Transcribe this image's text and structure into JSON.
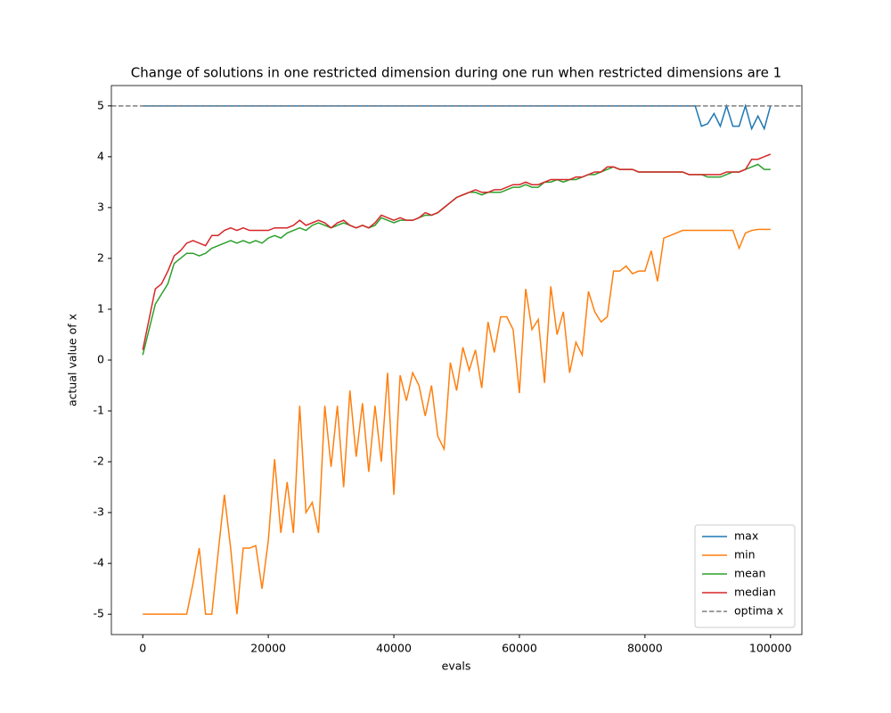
{
  "chart_data": {
    "type": "line",
    "title": "Change of solutions in one restricted dimension during one run when restricted dimensions are 1",
    "x_label": "evals",
    "y_label": "actual value of x",
    "x": [
      0,
      1000,
      2000,
      3000,
      4000,
      5000,
      6000,
      7000,
      8000,
      9000,
      10000,
      11000,
      12000,
      13000,
      14000,
      15000,
      16000,
      17000,
      18000,
      19000,
      20000,
      21000,
      22000,
      23000,
      24000,
      25000,
      26000,
      27000,
      28000,
      29000,
      30000,
      31000,
      32000,
      33000,
      34000,
      35000,
      36000,
      37000,
      38000,
      39000,
      40000,
      41000,
      42000,
      43000,
      44000,
      45000,
      46000,
      47000,
      48000,
      49000,
      50000,
      51000,
      52000,
      53000,
      54000,
      55000,
      56000,
      57000,
      58000,
      59000,
      60000,
      61000,
      62000,
      63000,
      64000,
      65000,
      66000,
      67000,
      68000,
      69000,
      70000,
      71000,
      72000,
      73000,
      74000,
      75000,
      76000,
      77000,
      78000,
      79000,
      80000,
      81000,
      82000,
      83000,
      84000,
      85000,
      86000,
      87000,
      88000,
      89000,
      90000,
      91000,
      92000,
      93000,
      94000,
      95000,
      96000,
      97000,
      98000,
      99000,
      100000
    ],
    "series": [
      {
        "name": "max",
        "color": "#1f77b4",
        "values": [
          5,
          5,
          5,
          5,
          5,
          5,
          5,
          5,
          5,
          5,
          5,
          5,
          5,
          5,
          5,
          5,
          5,
          5,
          5,
          5,
          5,
          5,
          5,
          5,
          5,
          5,
          5,
          5,
          5,
          5,
          5,
          5,
          5,
          5,
          5,
          5,
          5,
          5,
          5,
          5,
          5,
          5,
          5,
          5,
          5,
          5,
          5,
          5,
          5,
          5,
          5,
          5,
          5,
          5,
          5,
          5,
          5,
          5,
          5,
          5,
          5,
          5,
          5,
          5,
          5,
          5,
          5,
          5,
          5,
          5,
          5,
          5,
          5,
          5,
          5,
          5,
          5,
          5,
          5,
          5,
          5,
          5,
          5,
          5,
          5,
          5,
          5,
          5,
          5,
          4.6,
          4.65,
          4.85,
          4.6,
          5,
          4.6,
          4.6,
          5,
          4.55,
          4.8,
          4.55,
          5
        ]
      },
      {
        "name": "min",
        "color": "#ff7f0e",
        "values": [
          -5,
          -5,
          -5,
          -5,
          -5,
          -5,
          -5,
          -5,
          -4.4,
          -3.7,
          -5,
          -5,
          -3.8,
          -2.65,
          -3.7,
          -5,
          -3.7,
          -3.7,
          -3.65,
          -4.5,
          -3.55,
          -1.95,
          -3.4,
          -2.4,
          -3.4,
          -0.9,
          -3.0,
          -2.8,
          -3.4,
          -0.9,
          -2.1,
          -0.9,
          -2.5,
          -0.6,
          -1.9,
          -0.85,
          -2.2,
          -0.9,
          -2.0,
          -0.25,
          -2.65,
          -0.3,
          -0.8,
          -0.25,
          -0.5,
          -1.1,
          -0.5,
          -1.5,
          -1.75,
          -0.05,
          -0.6,
          0.25,
          -0.2,
          0.2,
          -0.55,
          0.75,
          0.15,
          0.85,
          0.85,
          0.6,
          -0.65,
          1.4,
          0.6,
          0.8,
          -0.45,
          1.45,
          0.5,
          0.95,
          -0.25,
          0.35,
          0.1,
          1.35,
          0.95,
          0.75,
          0.85,
          1.75,
          1.75,
          1.85,
          1.7,
          1.75,
          1.75,
          2.15,
          1.55,
          2.4,
          2.45,
          2.5,
          2.55,
          2.55,
          2.55,
          2.55,
          2.55,
          2.55,
          2.55,
          2.55,
          2.55,
          2.2,
          2.5,
          2.55,
          2.57,
          2.57,
          2.57
        ]
      },
      {
        "name": "mean",
        "color": "#2ca02c",
        "values": [
          0.1,
          0.6,
          1.1,
          1.3,
          1.5,
          1.9,
          2.0,
          2.1,
          2.1,
          2.05,
          2.1,
          2.2,
          2.25,
          2.3,
          2.35,
          2.3,
          2.35,
          2.3,
          2.35,
          2.3,
          2.4,
          2.45,
          2.4,
          2.5,
          2.55,
          2.6,
          2.55,
          2.65,
          2.7,
          2.65,
          2.6,
          2.65,
          2.7,
          2.65,
          2.6,
          2.65,
          2.6,
          2.65,
          2.8,
          2.75,
          2.7,
          2.75,
          2.75,
          2.75,
          2.8,
          2.85,
          2.85,
          2.9,
          3.0,
          3.1,
          3.2,
          3.25,
          3.3,
          3.3,
          3.25,
          3.3,
          3.3,
          3.3,
          3.35,
          3.4,
          3.4,
          3.45,
          3.4,
          3.4,
          3.5,
          3.5,
          3.55,
          3.5,
          3.55,
          3.55,
          3.6,
          3.65,
          3.65,
          3.7,
          3.75,
          3.8,
          3.75,
          3.75,
          3.75,
          3.7,
          3.7,
          3.7,
          3.7,
          3.7,
          3.7,
          3.7,
          3.7,
          3.65,
          3.65,
          3.65,
          3.6,
          3.6,
          3.6,
          3.65,
          3.7,
          3.7,
          3.75,
          3.8,
          3.85,
          3.75,
          3.75
        ]
      },
      {
        "name": "median",
        "color": "#d62728",
        "values": [
          0.2,
          0.8,
          1.4,
          1.5,
          1.75,
          2.05,
          2.15,
          2.3,
          2.35,
          2.3,
          2.25,
          2.45,
          2.45,
          2.55,
          2.6,
          2.55,
          2.6,
          2.55,
          2.55,
          2.55,
          2.55,
          2.6,
          2.6,
          2.6,
          2.65,
          2.75,
          2.65,
          2.7,
          2.75,
          2.7,
          2.6,
          2.7,
          2.75,
          2.65,
          2.6,
          2.65,
          2.6,
          2.7,
          2.85,
          2.8,
          2.75,
          2.8,
          2.75,
          2.75,
          2.8,
          2.9,
          2.85,
          2.9,
          3.0,
          3.1,
          3.2,
          3.25,
          3.3,
          3.35,
          3.3,
          3.3,
          3.35,
          3.35,
          3.4,
          3.45,
          3.45,
          3.5,
          3.45,
          3.45,
          3.5,
          3.55,
          3.55,
          3.55,
          3.55,
          3.6,
          3.6,
          3.65,
          3.7,
          3.7,
          3.8,
          3.8,
          3.75,
          3.75,
          3.75,
          3.7,
          3.7,
          3.7,
          3.7,
          3.7,
          3.7,
          3.7,
          3.7,
          3.65,
          3.65,
          3.65,
          3.65,
          3.65,
          3.65,
          3.7,
          3.7,
          3.7,
          3.75,
          3.95,
          3.95,
          4.0,
          4.05
        ]
      }
    ],
    "reference_lines": [
      {
        "name": "optima x",
        "color": "#7f7f7f",
        "y": 5,
        "style": "dashed"
      }
    ],
    "xlim": [
      -5000,
      105000
    ],
    "ylim": [
      -5.4,
      5.4
    ],
    "xticks": [
      0,
      20000,
      40000,
      60000,
      80000,
      100000
    ],
    "yticks": [
      -5,
      -4,
      -3,
      -2,
      -1,
      0,
      1,
      2,
      3,
      4,
      5
    ],
    "grid": false,
    "legend": "lower right"
  }
}
